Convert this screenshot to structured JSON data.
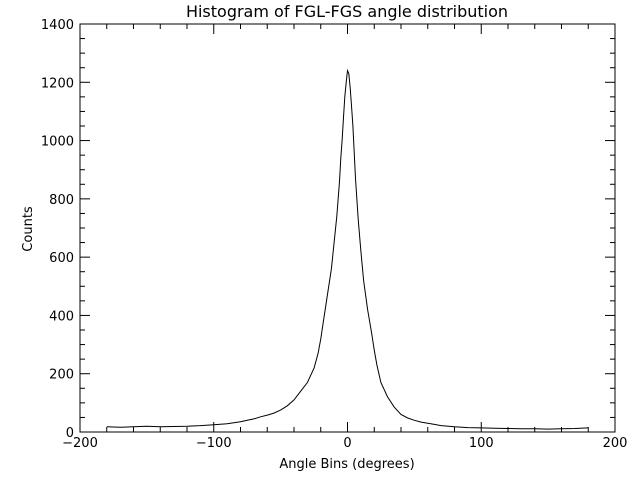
{
  "chart_data": {
    "type": "line",
    "title": "Histogram of FGL-FGS angle distribution",
    "xlabel": "Angle Bins (degrees)",
    "ylabel": "Counts",
    "xlim": [
      -200,
      200
    ],
    "ylim": [
      0,
      1400
    ],
    "x_ticks": [
      -200,
      -100,
      0,
      100,
      200
    ],
    "y_ticks": [
      0,
      200,
      400,
      600,
      800,
      1000,
      1200,
      1400
    ],
    "x_tick_labels": [
      "−200",
      "−100",
      "0",
      "100",
      "200"
    ],
    "y_tick_labels": [
      "0",
      "200",
      "400",
      "600",
      "800",
      "1000",
      "1200",
      "1400"
    ],
    "grid": false,
    "legend": "none",
    "colors": {
      "line": "#000000",
      "axes": "#000000",
      "background": "#ffffff"
    },
    "series": [
      {
        "x": [
          -180,
          -170,
          -160,
          -150,
          -140,
          -130,
          -120,
          -110,
          -100,
          -90,
          -80,
          -75,
          -70,
          -65,
          -60,
          -55,
          -50,
          -45,
          -40,
          -35,
          -30,
          -25,
          -22,
          -20,
          -18,
          -15,
          -12,
          -10,
          -8,
          -6,
          -5,
          -4,
          -3,
          -2,
          -1,
          0,
          1,
          2,
          3,
          4,
          5,
          6,
          8,
          10,
          12,
          15,
          18,
          20,
          22,
          25,
          30,
          35,
          40,
          45,
          50,
          55,
          60,
          65,
          70,
          80,
          90,
          100,
          110,
          120,
          130,
          140,
          150,
          160,
          170,
          180
        ],
        "y": [
          18,
          16,
          18,
          20,
          18,
          19,
          20,
          22,
          25,
          28,
          35,
          40,
          45,
          52,
          58,
          65,
          75,
          90,
          110,
          140,
          170,
          220,
          270,
          320,
          380,
          470,
          560,
          650,
          740,
          860,
          940,
          1000,
          1080,
          1150,
          1200,
          1240,
          1230,
          1180,
          1120,
          1050,
          960,
          870,
          730,
          620,
          520,
          420,
          340,
          280,
          230,
          170,
          120,
          85,
          60,
          48,
          40,
          34,
          30,
          26,
          22,
          18,
          15,
          14,
          13,
          12,
          11,
          11,
          10,
          11,
          12,
          14
        ]
      }
    ]
  }
}
